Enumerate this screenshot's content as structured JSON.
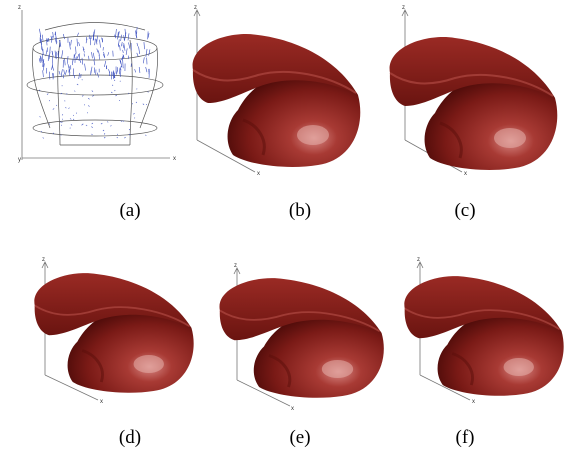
{
  "panels": [
    {
      "label": "(a)",
      "axes": [
        "z",
        "y",
        "x"
      ]
    },
    {
      "label": "(b)",
      "axes": [
        "z",
        "x"
      ]
    },
    {
      "label": "(c)",
      "axes": [
        "z",
        "x"
      ]
    },
    {
      "label": "(d)",
      "axes": [
        "z",
        "x"
      ]
    },
    {
      "label": "(e)",
      "axes": [
        "z",
        "x"
      ]
    },
    {
      "label": "(f)",
      "axes": [
        "z",
        "x"
      ]
    }
  ]
}
